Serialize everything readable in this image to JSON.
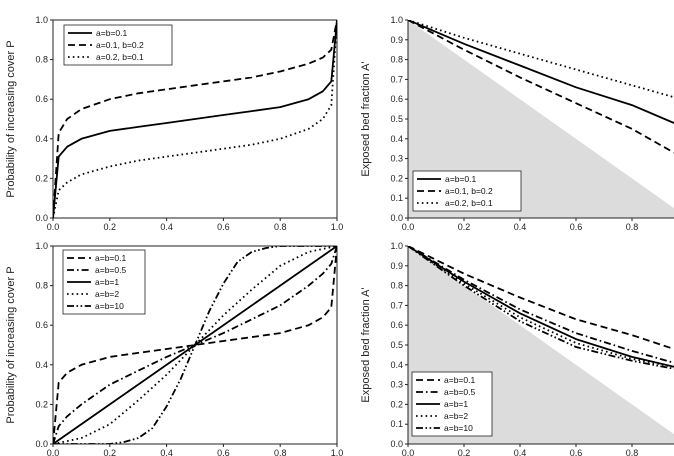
{
  "chart_data": [
    {
      "type": "line",
      "panel": "top-left",
      "xlabel": "",
      "ylabel": "Probability of increasing cover P",
      "xlim": [
        0,
        1
      ],
      "ylim": [
        0,
        1
      ],
      "x_ticks": [
        "0.0",
        "0.2",
        "0.4",
        "0.6",
        "0.8",
        "1.0"
      ],
      "y_ticks": [
        "0.0",
        "0.2",
        "0.4",
        "0.6",
        "0.8",
        "1.0"
      ],
      "legend_position": "top-left",
      "series": [
        {
          "name": "a=b=0.1",
          "style": "solid",
          "x": [
            0,
            0.02,
            0.05,
            0.1,
            0.2,
            0.3,
            0.4,
            0.5,
            0.6,
            0.7,
            0.8,
            0.9,
            0.95,
            0.98,
            1.0
          ],
          "y": [
            0,
            0.31,
            0.36,
            0.4,
            0.44,
            0.46,
            0.48,
            0.5,
            0.52,
            0.54,
            0.56,
            0.6,
            0.64,
            0.69,
            1.0
          ]
        },
        {
          "name": "a=0.1, b=0.2",
          "style": "dashed",
          "x": [
            0,
            0.02,
            0.05,
            0.1,
            0.2,
            0.3,
            0.4,
            0.5,
            0.6,
            0.7,
            0.8,
            0.9,
            0.95,
            0.98,
            1.0
          ],
          "y": [
            0,
            0.43,
            0.5,
            0.55,
            0.6,
            0.63,
            0.65,
            0.67,
            0.69,
            0.71,
            0.74,
            0.78,
            0.81,
            0.85,
            1.0
          ]
        },
        {
          "name": "a=0.2, b=0.1",
          "style": "dotted",
          "x": [
            0,
            0.02,
            0.05,
            0.1,
            0.2,
            0.3,
            0.4,
            0.5,
            0.6,
            0.7,
            0.8,
            0.9,
            0.95,
            0.98,
            1.0
          ],
          "y": [
            0,
            0.14,
            0.18,
            0.22,
            0.26,
            0.29,
            0.31,
            0.33,
            0.35,
            0.37,
            0.4,
            0.45,
            0.5,
            0.57,
            1.0
          ]
        }
      ]
    },
    {
      "type": "line",
      "panel": "top-right",
      "xlabel": "",
      "ylabel": "Exposed bed fraction A'",
      "xlim": [
        0,
        0.95
      ],
      "ylim": [
        0,
        1
      ],
      "x_ticks": [
        "0.0",
        "0.2",
        "0.4",
        "0.6",
        "0.8"
      ],
      "y_ticks": [
        "0.0",
        "0.1",
        "0.2",
        "0.3",
        "0.4",
        "0.5",
        "0.6",
        "0.7",
        "0.8",
        "0.9",
        "1.0"
      ],
      "shaded_region": "below line A' = 1 - x",
      "legend_position": "bottom-left",
      "series": [
        {
          "name": "a=b=0.1",
          "style": "solid",
          "x": [
            0,
            0.2,
            0.4,
            0.6,
            0.8,
            0.95
          ],
          "y": [
            1.0,
            0.88,
            0.77,
            0.66,
            0.57,
            0.48
          ]
        },
        {
          "name": "a=0.1, b=0.2",
          "style": "dashed",
          "x": [
            0,
            0.2,
            0.4,
            0.6,
            0.8,
            0.95
          ],
          "y": [
            1.0,
            0.85,
            0.71,
            0.58,
            0.45,
            0.33
          ]
        },
        {
          "name": "a=0.2, b=0.1",
          "style": "dotted",
          "x": [
            0,
            0.2,
            0.4,
            0.6,
            0.8,
            0.95
          ],
          "y": [
            1.0,
            0.91,
            0.83,
            0.75,
            0.67,
            0.61
          ]
        }
      ]
    },
    {
      "type": "line",
      "panel": "bottom-left",
      "xlabel": "",
      "ylabel": "Probability of increasing cover P",
      "xlim": [
        0,
        1
      ],
      "ylim": [
        0,
        1
      ],
      "x_ticks": [
        "0.0",
        "0.2",
        "0.4",
        "0.6",
        "0.8",
        "1.0"
      ],
      "y_ticks": [
        "0.0",
        "0.2",
        "0.4",
        "0.6",
        "0.8",
        "1.0"
      ],
      "legend_position": "top-left",
      "series": [
        {
          "name": "a=b=0.1",
          "style": "dashed",
          "x": [
            0,
            0.02,
            0.05,
            0.1,
            0.2,
            0.3,
            0.4,
            0.5,
            0.6,
            0.7,
            0.8,
            0.9,
            0.95,
            0.98,
            1.0
          ],
          "y": [
            0,
            0.31,
            0.36,
            0.4,
            0.44,
            0.46,
            0.48,
            0.5,
            0.52,
            0.54,
            0.56,
            0.6,
            0.64,
            0.69,
            1.0
          ]
        },
        {
          "name": "a=b=0.5",
          "style": "dash-dot",
          "x": [
            0,
            0.02,
            0.05,
            0.1,
            0.2,
            0.3,
            0.4,
            0.5,
            0.6,
            0.7,
            0.8,
            0.9,
            0.95,
            0.98,
            1.0
          ],
          "y": [
            0,
            0.09,
            0.14,
            0.2,
            0.3,
            0.37,
            0.44,
            0.5,
            0.56,
            0.63,
            0.7,
            0.8,
            0.86,
            0.91,
            1.0
          ]
        },
        {
          "name": "a=b=1",
          "style": "solid",
          "x": [
            0,
            0.2,
            0.4,
            0.6,
            0.8,
            1.0
          ],
          "y": [
            0,
            0.2,
            0.4,
            0.6,
            0.8,
            1.0
          ]
        },
        {
          "name": "a=b=2",
          "style": "dotted",
          "x": [
            0,
            0.1,
            0.2,
            0.3,
            0.4,
            0.5,
            0.6,
            0.7,
            0.8,
            0.9,
            1.0
          ],
          "y": [
            0,
            0.03,
            0.1,
            0.22,
            0.35,
            0.5,
            0.65,
            0.78,
            0.9,
            0.97,
            1.0
          ]
        },
        {
          "name": "a=b=10",
          "style": "dash-dot-dot",
          "x": [
            0,
            0.1,
            0.2,
            0.25,
            0.3,
            0.35,
            0.4,
            0.45,
            0.5,
            0.55,
            0.6,
            0.65,
            0.7,
            0.75,
            0.8,
            0.9,
            1.0
          ],
          "y": [
            0,
            0,
            0.0,
            0.01,
            0.03,
            0.08,
            0.19,
            0.33,
            0.5,
            0.67,
            0.81,
            0.92,
            0.97,
            0.99,
            1.0,
            1.0,
            1.0
          ]
        }
      ]
    },
    {
      "type": "line",
      "panel": "bottom-right",
      "xlabel": "",
      "ylabel": "Exposed bed fraction A'",
      "xlim": [
        0,
        0.95
      ],
      "ylim": [
        0,
        1
      ],
      "x_ticks": [
        "0.0",
        "0.2",
        "0.4",
        "0.6",
        "0.8"
      ],
      "y_ticks": [
        "0.0",
        "0.1",
        "0.2",
        "0.3",
        "0.4",
        "0.5",
        "0.6",
        "0.7",
        "0.8",
        "0.9",
        "1.0"
      ],
      "shaded_region": "below line A' = 1 - x",
      "legend_position": "bottom-left",
      "series": [
        {
          "name": "a=b=0.1",
          "style": "dashed",
          "x": [
            0,
            0.2,
            0.4,
            0.6,
            0.8,
            0.95
          ],
          "y": [
            1.0,
            0.86,
            0.74,
            0.63,
            0.55,
            0.48
          ]
        },
        {
          "name": "a=b=0.5",
          "style": "dash-dot",
          "x": [
            0,
            0.2,
            0.4,
            0.6,
            0.8,
            0.95
          ],
          "y": [
            1.0,
            0.83,
            0.68,
            0.56,
            0.47,
            0.41
          ]
        },
        {
          "name": "a=b=1",
          "style": "solid",
          "x": [
            0,
            0.2,
            0.4,
            0.6,
            0.8,
            0.95
          ],
          "y": [
            1.0,
            0.82,
            0.66,
            0.53,
            0.44,
            0.39
          ]
        },
        {
          "name": "a=b=2",
          "style": "dotted",
          "x": [
            0,
            0.2,
            0.4,
            0.6,
            0.8,
            0.95
          ],
          "y": [
            1.0,
            0.81,
            0.64,
            0.51,
            0.43,
            0.39
          ]
        },
        {
          "name": "a=b=10",
          "style": "dash-dot-dot",
          "x": [
            0,
            0.2,
            0.4,
            0.6,
            0.8,
            0.95
          ],
          "y": [
            1.0,
            0.8,
            0.62,
            0.49,
            0.42,
            0.38
          ]
        }
      ]
    }
  ]
}
